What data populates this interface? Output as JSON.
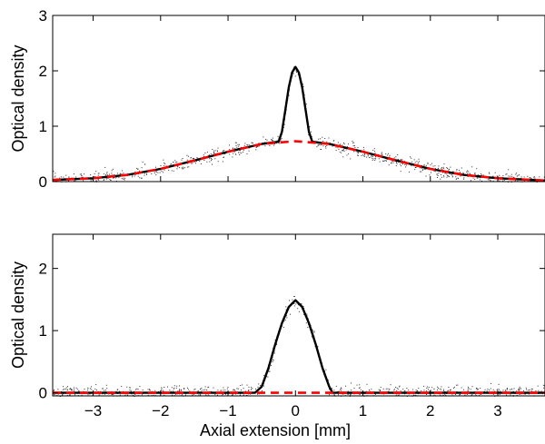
{
  "chart_data": [
    {
      "type": "line",
      "title": "",
      "xlabel": "",
      "ylabel": "Optical density",
      "xlim": [
        -3.6,
        3.7
      ],
      "ylim": [
        0,
        3
      ],
      "yticks": [
        0,
        1,
        2,
        3
      ],
      "xticks": [
        -3,
        -2,
        -1,
        0,
        1,
        2,
        3
      ],
      "show_xtick_labels": false,
      "grid": false,
      "legend": "none",
      "series": [
        {
          "style": "solid",
          "color": "#000000",
          "x": [
            -3.6,
            -3.0,
            -2.5,
            -2.0,
            -1.5,
            -1.0,
            -0.5,
            -0.25,
            -0.2,
            -0.15,
            -0.1,
            -0.05,
            0.0,
            0.05,
            0.1,
            0.15,
            0.2,
            0.25,
            0.5,
            1.0,
            1.5,
            2.0,
            2.5,
            3.0,
            3.7
          ],
          "y": [
            0.03,
            0.06,
            0.12,
            0.23,
            0.38,
            0.54,
            0.68,
            0.72,
            0.9,
            1.3,
            1.7,
            1.97,
            2.07,
            1.97,
            1.7,
            1.3,
            0.9,
            0.72,
            0.68,
            0.54,
            0.38,
            0.23,
            0.12,
            0.06,
            0.02
          ]
        },
        {
          "style": "dashed",
          "color": "#ff0000",
          "x": [
            -3.6,
            -3.0,
            -2.5,
            -2.0,
            -1.5,
            -1.0,
            -0.5,
            0.0,
            0.5,
            1.0,
            1.5,
            2.0,
            2.5,
            3.0,
            3.7
          ],
          "y": [
            0.03,
            0.06,
            0.12,
            0.23,
            0.38,
            0.54,
            0.68,
            0.73,
            0.68,
            0.54,
            0.38,
            0.23,
            0.12,
            0.06,
            0.02
          ]
        }
      ]
    },
    {
      "type": "line",
      "title": "",
      "xlabel": "Axial extension [mm]",
      "ylabel": "Optical density",
      "xlim": [
        -3.6,
        3.7
      ],
      "ylim": [
        -0.05,
        2.55
      ],
      "yticks": [
        0,
        1,
        2
      ],
      "xticks": [
        -3,
        -2,
        -1,
        0,
        1,
        2,
        3
      ],
      "show_xtick_labels": true,
      "grid": false,
      "legend": "none",
      "series": [
        {
          "style": "solid",
          "color": "#000000",
          "x": [
            -3.6,
            -0.6,
            -0.5,
            -0.4,
            -0.3,
            -0.2,
            -0.1,
            0.0,
            0.1,
            0.2,
            0.3,
            0.4,
            0.5,
            0.55,
            3.7
          ],
          "y": [
            0.0,
            0.0,
            0.1,
            0.4,
            0.78,
            1.12,
            1.38,
            1.49,
            1.38,
            1.12,
            0.78,
            0.4,
            0.1,
            0.0,
            0.0
          ]
        },
        {
          "style": "dashed",
          "color": "#ff0000",
          "x": [
            -3.6,
            3.7
          ],
          "y": [
            0.0,
            0.0
          ]
        }
      ]
    }
  ]
}
